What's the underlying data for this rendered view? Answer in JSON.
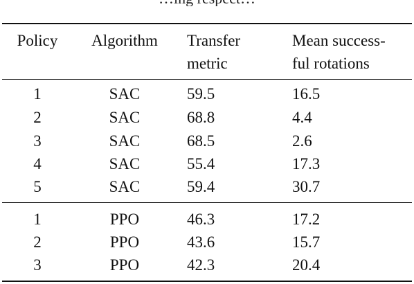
{
  "caption_tail": "…ing respect…",
  "table": {
    "headers": {
      "policy": [
        "Policy"
      ],
      "algorithm": [
        "Algorithm"
      ],
      "transfer": [
        "Transfer",
        "metric"
      ],
      "mean": [
        "Mean success-",
        "ful rotations"
      ]
    },
    "group1": [
      {
        "policy": "1",
        "algorithm": "SAC",
        "transfer": "59.5",
        "mean": "16.5"
      },
      {
        "policy": "2",
        "algorithm": "SAC",
        "transfer": "68.8",
        "mean": "4.4"
      },
      {
        "policy": "3",
        "algorithm": "SAC",
        "transfer": "68.5",
        "mean": "2.6"
      },
      {
        "policy": "4",
        "algorithm": "SAC",
        "transfer": "55.4",
        "mean": "17.3"
      },
      {
        "policy": "5",
        "algorithm": "SAC",
        "transfer": "59.4",
        "mean": "30.7"
      }
    ],
    "group2": [
      {
        "policy": "1",
        "algorithm": "PPO",
        "transfer": "46.3",
        "mean": "17.2"
      },
      {
        "policy": "2",
        "algorithm": "PPO",
        "transfer": "43.6",
        "mean": "15.7"
      },
      {
        "policy": "3",
        "algorithm": "PPO",
        "transfer": "42.3",
        "mean": "20.4"
      }
    ]
  }
}
